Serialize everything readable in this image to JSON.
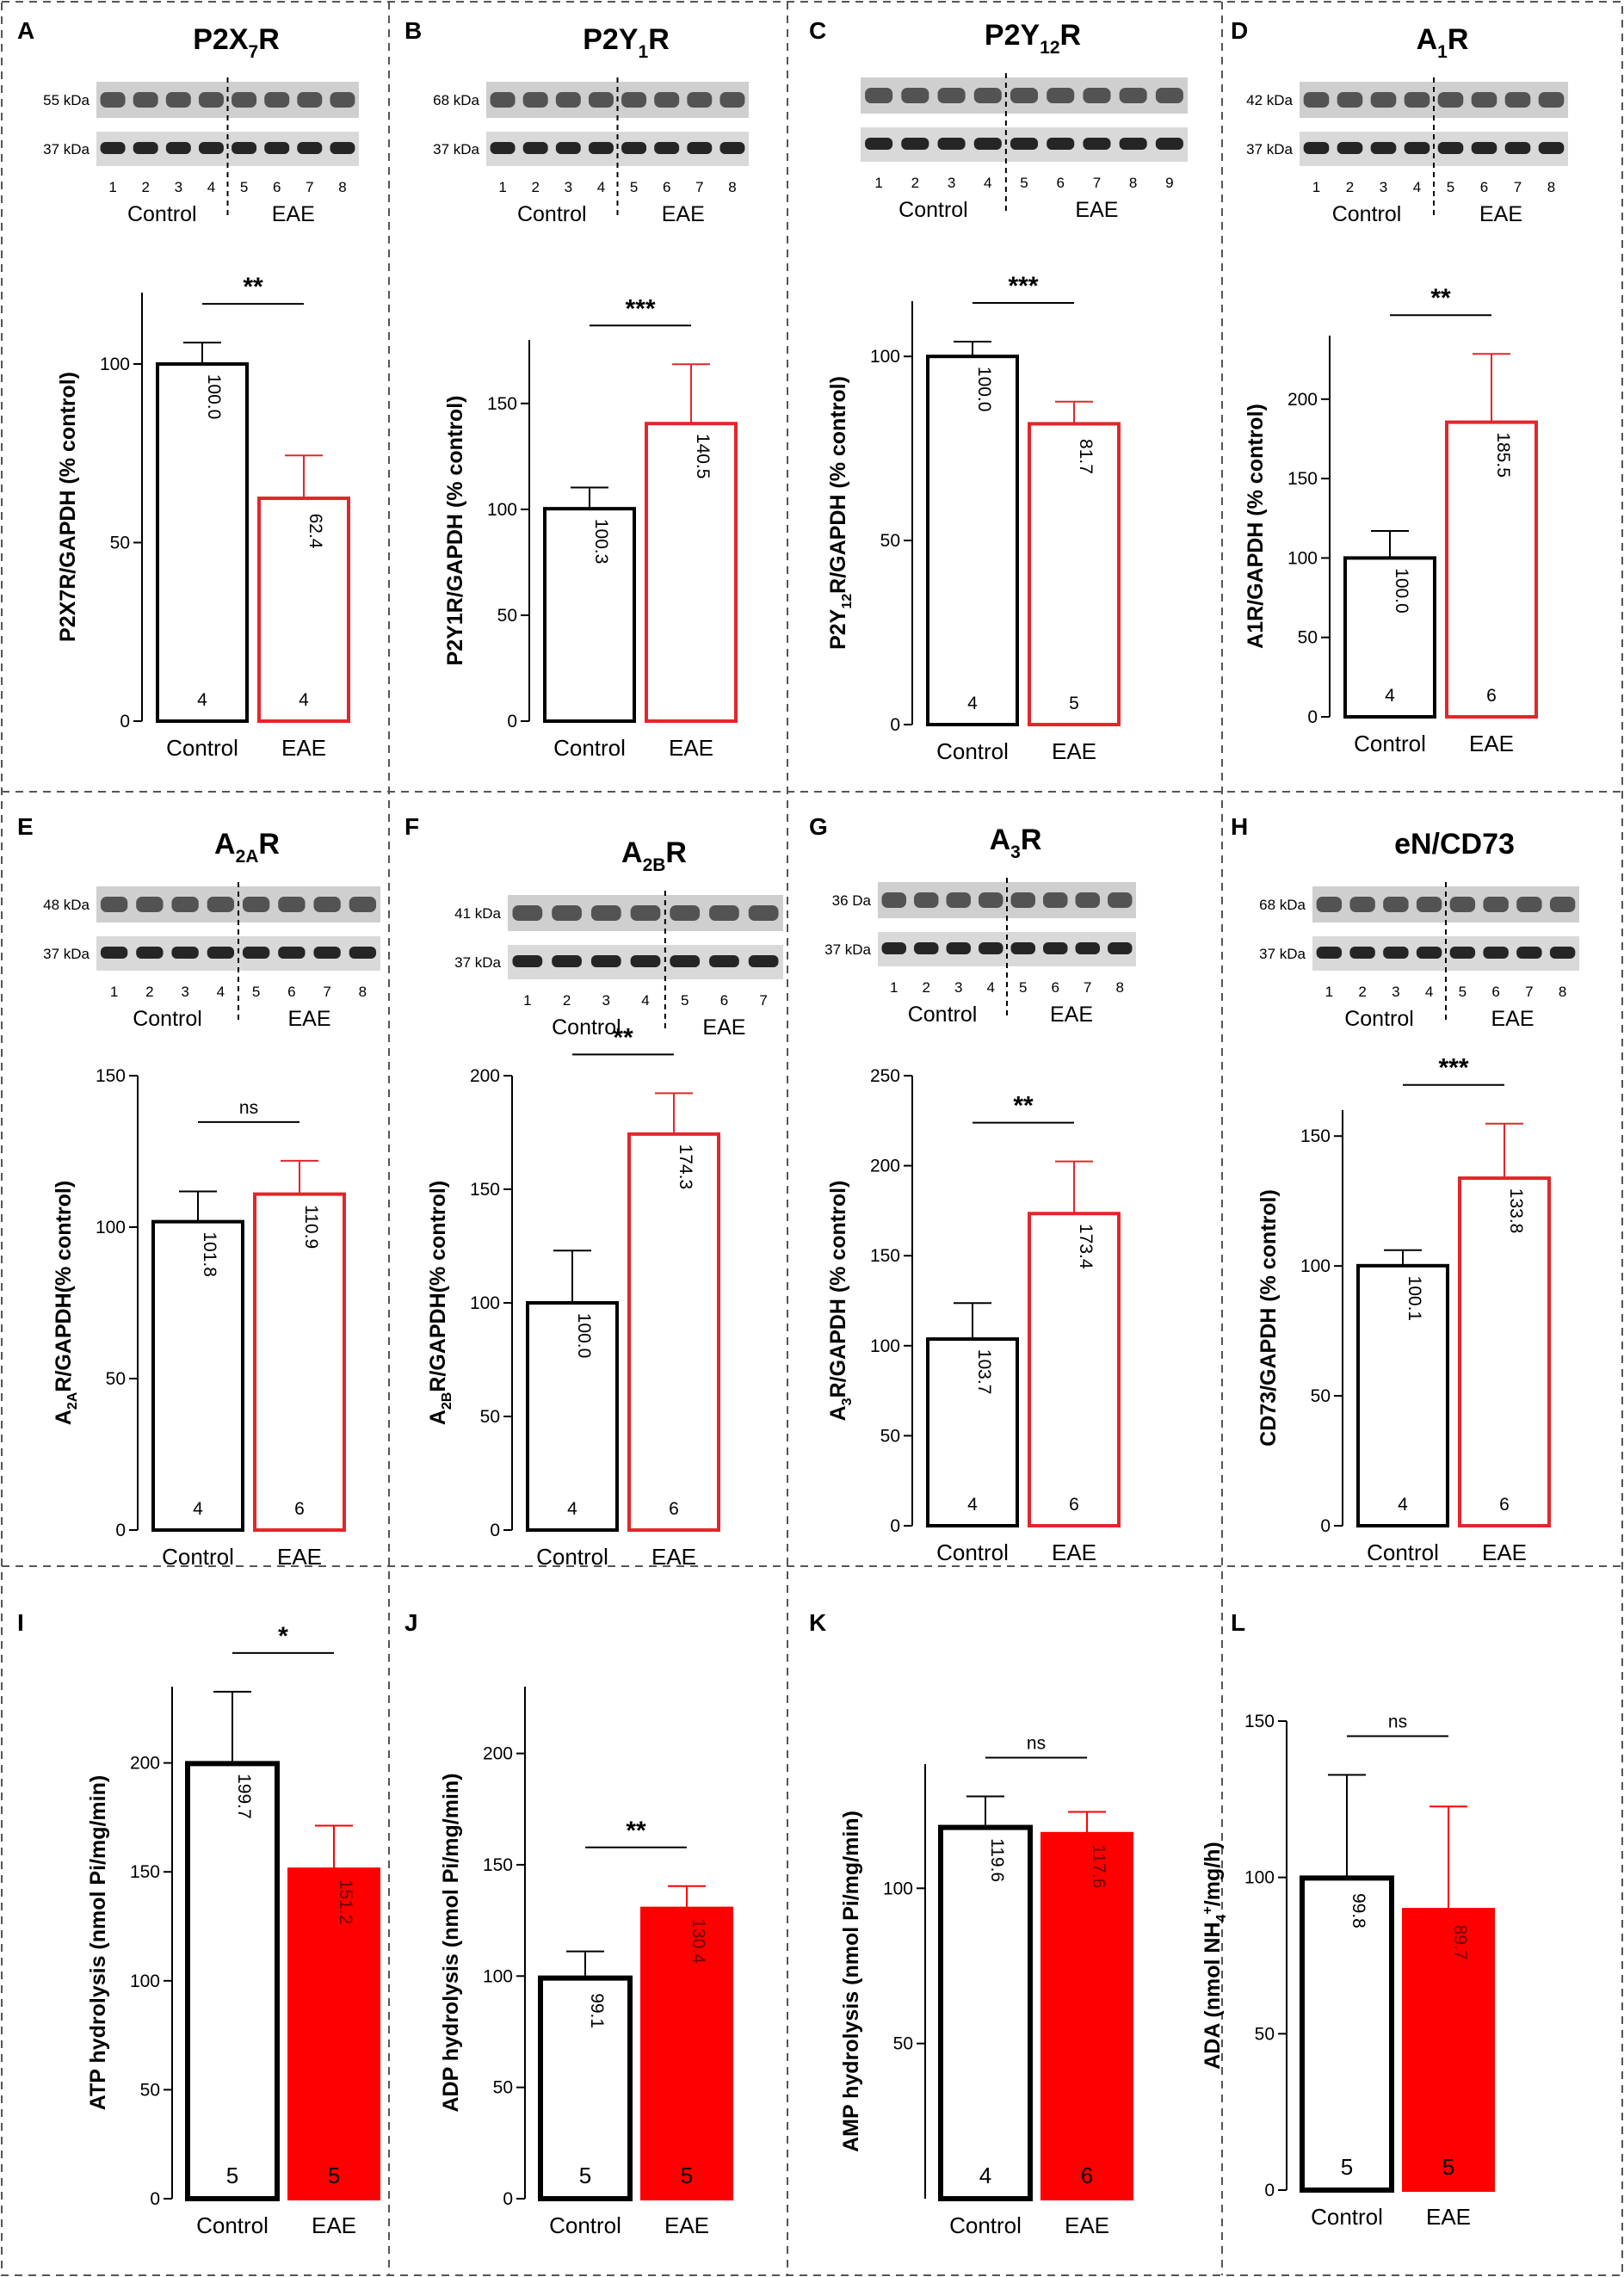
{
  "figure": {
    "columns": 4,
    "rows": 3
  },
  "chart_data": [
    {
      "panel": "A",
      "type": "bar",
      "title": {
        "pre": "P2X",
        "sub": "7",
        "post": "R"
      },
      "blot": {
        "top_label": "55 kDa",
        "bottom_label": "37 kDa",
        "lanes": [
          "1",
          "2",
          "3",
          "4",
          "5",
          "6",
          "7",
          "8"
        ],
        "divider_after": 4,
        "control_label": "Control",
        "eae_label": "EAE"
      },
      "categories": [
        "Control",
        "EAE"
      ],
      "values": [
        100.0,
        62.4
      ],
      "value_labels": [
        "100.0",
        "62.4"
      ],
      "errors": [
        6,
        12
      ],
      "n": [
        "4",
        "4"
      ],
      "ylabel": {
        "pre": "P2X7R/GAPDH (% control)",
        "sub": "",
        "post": ""
      },
      "yticks": [
        "0",
        "50",
        "100"
      ],
      "ylim": [
        0,
        120
      ],
      "significance": "**",
      "colors": [
        "#000000",
        "#e3262b"
      ],
      "fill": false
    },
    {
      "panel": "B",
      "type": "bar",
      "title": {
        "pre": "P2Y",
        "sub": "1",
        "post": "R"
      },
      "blot": {
        "top_label": "68 kDa",
        "bottom_label": "37 kDa",
        "lanes": [
          "1",
          "2",
          "3",
          "4",
          "5",
          "6",
          "7",
          "8"
        ],
        "divider_after": 4,
        "control_label": "Control",
        "eae_label": "EAE"
      },
      "categories": [
        "Control",
        "EAE"
      ],
      "values": [
        100.3,
        140.5
      ],
      "value_labels": [
        "100.3",
        "140.5"
      ],
      "errors": [
        10,
        28
      ],
      "n": [
        "",
        ""
      ],
      "ylabel": {
        "pre": "P2Y1R/GAPDH (% control)",
        "sub": "",
        "post": ""
      },
      "yticks": [
        "0",
        "50",
        "100",
        "150"
      ],
      "ylim": [
        0,
        180
      ],
      "significance": "***",
      "colors": [
        "#000000",
        "#e3262b"
      ],
      "fill": false
    },
    {
      "panel": "C",
      "type": "bar",
      "title": {
        "pre": "P2Y",
        "sub": "12",
        "post": "R"
      },
      "blot": {
        "top_label": "",
        "bottom_label": "",
        "lanes": [
          "1",
          "2",
          "3",
          "4",
          "5",
          "6",
          "7",
          "8",
          "9"
        ],
        "divider_after": 4,
        "control_label": "Control",
        "eae_label": "EAE"
      },
      "categories": [
        "Control",
        "EAE"
      ],
      "values": [
        100.0,
        81.7
      ],
      "value_labels": [
        "100.0",
        "81.7"
      ],
      "errors": [
        4,
        6
      ],
      "n": [
        "4",
        "5"
      ],
      "ylabel": {
        "pre": "P2Y",
        "sub": "12",
        "post": "R/GAPDH (% control)"
      },
      "yticks": [
        "0",
        "50",
        "100"
      ],
      "ylim": [
        0,
        115
      ],
      "significance": "***",
      "colors": [
        "#000000",
        "#e3262b"
      ],
      "fill": false
    },
    {
      "panel": "D",
      "type": "bar",
      "title": {
        "pre": "A",
        "sub": "1",
        "post": "R"
      },
      "blot": {
        "top_label": "42 kDa",
        "bottom_label": "37 kDa",
        "lanes": [
          "1",
          "2",
          "3",
          "4",
          "5",
          "6",
          "7",
          "8"
        ],
        "divider_after": 4,
        "control_label": "Control",
        "eae_label": "EAE"
      },
      "categories": [
        "Control",
        "EAE"
      ],
      "values": [
        100.0,
        185.5
      ],
      "value_labels": [
        "100.0",
        "185.5"
      ],
      "errors": [
        17,
        43
      ],
      "n": [
        "4",
        "6"
      ],
      "ylabel": {
        "pre": "A1R/GAPDH (% control)",
        "sub": "",
        "post": ""
      },
      "yticks": [
        "0",
        "50",
        "100",
        "150",
        "200"
      ],
      "ylim": [
        0,
        240
      ],
      "significance": "**",
      "colors": [
        "#000000",
        "#e3262b"
      ],
      "fill": false
    },
    {
      "panel": "E",
      "type": "bar",
      "title": {
        "pre": "A",
        "sub": "2A",
        "post": "R"
      },
      "blot": {
        "top_label": "48 kDa",
        "bottom_label": "37 kDa",
        "lanes": [
          "1",
          "2",
          "3",
          "4",
          "5",
          "6",
          "7",
          "8"
        ],
        "divider_after": 4,
        "control_label": "Control",
        "eae_label": "EAE"
      },
      "categories": [
        "Control",
        "EAE"
      ],
      "values": [
        101.8,
        110.9
      ],
      "value_labels": [
        "101.8",
        "110.9"
      ],
      "errors": [
        10,
        11
      ],
      "n": [
        "4",
        "6"
      ],
      "ylabel": {
        "pre": "A",
        "sub": "2A",
        "post": "R/GAPDH(% control)"
      },
      "yticks": [
        "0",
        "50",
        "100",
        "150"
      ],
      "ylim": [
        0,
        150
      ],
      "significance": "ns",
      "colors": [
        "#000000",
        "#e3262b"
      ],
      "fill": false
    },
    {
      "panel": "F",
      "type": "bar",
      "title": {
        "pre": "A",
        "sub": "2B",
        "post": "R"
      },
      "blot": {
        "top_label": "41 kDa",
        "bottom_label": "37 kDa",
        "lanes": [
          "1",
          "2",
          "3",
          "4",
          "5",
          "6",
          "7"
        ],
        "divider_after": 4,
        "control_label": "Control",
        "eae_label": "EAE"
      },
      "categories": [
        "Control",
        "EAE"
      ],
      "values": [
        100.0,
        174.3
      ],
      "value_labels": [
        "100.0",
        "174.3"
      ],
      "errors": [
        23,
        18
      ],
      "n": [
        "4",
        "6"
      ],
      "ylabel": {
        "pre": "A",
        "sub": "2B",
        "post": "R/GAPDH(% control)"
      },
      "yticks": [
        "0",
        "50",
        "100",
        "150",
        "200"
      ],
      "ylim": [
        0,
        200
      ],
      "significance": "**",
      "colors": [
        "#000000",
        "#e3262b"
      ],
      "fill": false
    },
    {
      "panel": "G",
      "type": "bar",
      "title": {
        "pre": "A",
        "sub": "3",
        "post": "R"
      },
      "blot": {
        "top_label": "36 Da",
        "bottom_label": "37 kDa",
        "lanes": [
          "1",
          "2",
          "3",
          "4",
          "5",
          "6",
          "7",
          "8"
        ],
        "divider_after": 4,
        "control_label": "Control",
        "eae_label": "EAE"
      },
      "categories": [
        "Control",
        "EAE"
      ],
      "values": [
        103.7,
        173.4
      ],
      "value_labels": [
        "103.7",
        "173.4"
      ],
      "errors": [
        20,
        29
      ],
      "n": [
        "4",
        "6"
      ],
      "ylabel": {
        "pre": "A",
        "sub": "3",
        "post": "R/GAPDH (% control)"
      },
      "yticks": [
        "0",
        "50",
        "100",
        "150",
        "200",
        "250"
      ],
      "ylim": [
        0,
        250
      ],
      "significance": "**",
      "colors": [
        "#000000",
        "#e3262b"
      ],
      "fill": false
    },
    {
      "panel": "H",
      "type": "bar",
      "title": {
        "pre": "eN/CD73",
        "sub": "",
        "post": ""
      },
      "blot": {
        "top_label": "68 kDa",
        "bottom_label": "37 kDa",
        "lanes": [
          "1",
          "2",
          "3",
          "4",
          "5",
          "6",
          "7",
          "8"
        ],
        "divider_after": 4,
        "control_label": "Control",
        "eae_label": "EAE"
      },
      "categories": [
        "Control",
        "EAE"
      ],
      "values": [
        100.1,
        133.8
      ],
      "value_labels": [
        "100.1",
        "133.8"
      ],
      "errors": [
        6,
        21
      ],
      "n": [
        "4",
        "6"
      ],
      "ylabel": {
        "pre": "CD73/GAPDH (% control)",
        "sub": "",
        "post": ""
      },
      "yticks": [
        "0",
        "50",
        "100",
        "150"
      ],
      "ylim": [
        0,
        160
      ],
      "significance": "***",
      "colors": [
        "#000000",
        "#e3262b"
      ],
      "fill": false
    },
    {
      "panel": "I",
      "type": "bar",
      "title": null,
      "categories": [
        "Control",
        "EAE"
      ],
      "values": [
        199.7,
        151.2
      ],
      "value_labels": [
        "199.7",
        "151.2"
      ],
      "errors": [
        33,
        20
      ],
      "n": [
        "5",
        "5"
      ],
      "ylabel": {
        "pre": "ATP hydrolysis (nmol Pi/mg/min)",
        "sub": "",
        "post": ""
      },
      "yticks": [
        "0",
        "50",
        "100",
        "150",
        "200"
      ],
      "ylim": [
        0,
        235
      ],
      "significance": "*",
      "colors": [
        "#000000",
        "#ff0000"
      ],
      "fill": true
    },
    {
      "panel": "J",
      "type": "bar",
      "title": null,
      "categories": [
        "Control",
        "EAE"
      ],
      "values": [
        99.1,
        130.4
      ],
      "value_labels": [
        "99.1",
        "130.4"
      ],
      "errors": [
        12,
        10
      ],
      "n": [
        "5",
        "5"
      ],
      "ylabel": {
        "pre": "ADP hydrolysis (nmol Pi/mg/min)",
        "sub": "",
        "post": ""
      },
      "yticks": [
        "0",
        "50",
        "100",
        "150",
        "200"
      ],
      "ylim": [
        0,
        230
      ],
      "significance": "**",
      "colors": [
        "#000000",
        "#ff0000"
      ],
      "fill": true
    },
    {
      "panel": "K",
      "type": "bar",
      "title": null,
      "categories": [
        "Control",
        "EAE"
      ],
      "values": [
        119.6,
        117.6
      ],
      "value_labels": [
        "119.6",
        "117.6"
      ],
      "errors": [
        10,
        7
      ],
      "n": [
        "4",
        "6"
      ],
      "ylabel": {
        "pre": "AMP hydrolysis (nmol Pi/mg/min)",
        "sub": "",
        "post": ""
      },
      "yticks": [
        "50",
        "100"
      ],
      "ylim": [
        0,
        140
      ],
      "significance": "ns",
      "colors": [
        "#000000",
        "#ff0000"
      ],
      "fill": true
    },
    {
      "panel": "L",
      "type": "bar",
      "title": null,
      "categories": [
        "Control",
        "EAE"
      ],
      "values": [
        99.8,
        89.7
      ],
      "value_labels": [
        "99.8",
        "89.7"
      ],
      "errors": [
        33,
        33
      ],
      "n": [
        "5",
        "5"
      ],
      "ylabel": {
        "pre": "ADA (nmol NH",
        "sub": "4",
        "sup": "+",
        "post": "/mg/h)"
      },
      "yticks": [
        "0",
        "50",
        "100",
        "150"
      ],
      "ylim": [
        0,
        150
      ],
      "significance": "ns",
      "colors": [
        "#000000",
        "#ff0000"
      ],
      "fill": true
    }
  ]
}
